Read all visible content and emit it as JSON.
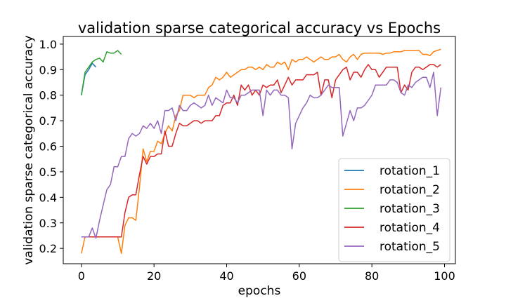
{
  "chart_data": {
    "type": "line",
    "title": "validation sparse categorical accuracy vs Epochs",
    "xlabel": "epochs",
    "ylabel": "validation sparse categorical accuracy",
    "xlim": [
      -5,
      103
    ],
    "ylim": [
      0.14,
      1.03
    ],
    "xticks": [
      0,
      20,
      40,
      60,
      80,
      100
    ],
    "yticks": [
      0.2,
      0.3,
      0.4,
      0.5,
      0.6,
      0.7,
      0.8,
      0.9,
      1.0
    ],
    "ytick_labels": [
      "0.2",
      "0.3",
      "0.4",
      "0.5",
      "0.6",
      "0.7",
      "0.8",
      "0.9",
      "1.0"
    ],
    "xtick_labels": [
      "0",
      "20",
      "40",
      "60",
      "80",
      "100"
    ],
    "grid": false,
    "legend_position": "lower-right",
    "series": [
      {
        "name": "rotation_1",
        "color": "#1f77b4",
        "x": [
          0,
          1,
          2,
          3,
          4
        ],
        "y": [
          0.8,
          0.88,
          0.9,
          0.925,
          0.91
        ]
      },
      {
        "name": "rotation_2",
        "color": "#ff7f0e",
        "x": [
          0,
          1,
          2,
          3,
          4,
          5,
          6,
          7,
          8,
          9,
          10,
          11,
          12,
          13,
          14,
          15,
          16,
          17,
          18,
          19,
          20,
          21,
          22,
          23,
          24,
          25,
          26,
          27,
          28,
          29,
          30,
          31,
          32,
          33,
          34,
          35,
          36,
          37,
          38,
          39,
          40,
          41,
          42,
          43,
          44,
          45,
          46,
          47,
          48,
          49,
          50,
          51,
          52,
          53,
          54,
          55,
          56,
          57,
          58,
          59,
          60,
          61,
          62,
          63,
          64,
          65,
          66,
          67,
          68,
          69,
          70,
          71,
          72,
          73,
          74,
          75,
          76,
          77,
          78,
          79,
          80,
          81,
          82,
          83,
          84,
          85,
          86,
          87,
          88,
          89,
          90,
          91,
          92,
          93,
          94,
          95,
          96,
          97,
          98,
          99
        ],
        "y": [
          0.18,
          0.245,
          0.245,
          0.245,
          0.245,
          0.245,
          0.245,
          0.245,
          0.245,
          0.245,
          0.245,
          0.18,
          0.29,
          0.32,
          0.32,
          0.31,
          0.44,
          0.59,
          0.54,
          0.58,
          0.58,
          0.62,
          0.61,
          0.65,
          0.68,
          0.66,
          0.72,
          0.74,
          0.8,
          0.8,
          0.8,
          0.79,
          0.8,
          0.8,
          0.8,
          0.83,
          0.84,
          0.87,
          0.86,
          0.87,
          0.89,
          0.87,
          0.88,
          0.89,
          0.9,
          0.9,
          0.91,
          0.91,
          0.9,
          0.91,
          0.9,
          0.92,
          0.91,
          0.91,
          0.93,
          0.92,
          0.93,
          0.9,
          0.94,
          0.93,
          0.94,
          0.94,
          0.95,
          0.94,
          0.93,
          0.94,
          0.95,
          0.94,
          0.94,
          0.95,
          0.95,
          0.96,
          0.94,
          0.93,
          0.95,
          0.96,
          0.94,
          0.96,
          0.965,
          0.965,
          0.965,
          0.965,
          0.965,
          0.96,
          0.965,
          0.965,
          0.97,
          0.97,
          0.97,
          0.975,
          0.975,
          0.975,
          0.975,
          0.975,
          0.96,
          0.96,
          0.955,
          0.97,
          0.975,
          0.98
        ]
      },
      {
        "name": "rotation_3",
        "color": "#2ca02c",
        "x": [
          0,
          1,
          2,
          3,
          4,
          5,
          6,
          7,
          8,
          9,
          10,
          11
        ],
        "y": [
          0.8,
          0.89,
          0.91,
          0.93,
          0.94,
          0.945,
          0.93,
          0.97,
          0.965,
          0.965,
          0.975,
          0.96
        ]
      },
      {
        "name": "rotation_4",
        "color": "#d62728",
        "x": [
          0,
          1,
          2,
          3,
          4,
          5,
          6,
          7,
          8,
          9,
          10,
          11,
          12,
          13,
          14,
          15,
          16,
          17,
          18,
          19,
          20,
          21,
          22,
          23,
          24,
          25,
          26,
          27,
          28,
          29,
          30,
          31,
          32,
          33,
          34,
          35,
          36,
          37,
          38,
          39,
          40,
          41,
          42,
          43,
          44,
          45,
          46,
          47,
          48,
          49,
          50,
          51,
          52,
          53,
          54,
          55,
          56,
          57,
          58,
          59,
          60,
          61,
          62,
          63,
          64,
          65,
          66,
          67,
          68,
          69,
          70,
          71,
          72,
          73,
          74,
          75,
          76,
          77,
          78,
          79,
          80,
          81,
          82,
          83,
          84,
          85,
          86,
          87,
          88,
          89,
          90,
          91,
          92,
          93,
          94,
          95,
          96,
          97,
          98,
          99
        ],
        "y": [
          0.245,
          0.245,
          0.245,
          0.245,
          0.245,
          0.245,
          0.245,
          0.245,
          0.245,
          0.245,
          0.245,
          0.245,
          0.34,
          0.4,
          0.41,
          0.41,
          0.49,
          0.56,
          0.53,
          0.56,
          0.56,
          0.57,
          0.57,
          0.66,
          0.6,
          0.6,
          0.65,
          0.69,
          0.68,
          0.68,
          0.69,
          0.7,
          0.7,
          0.69,
          0.7,
          0.7,
          0.7,
          0.72,
          0.72,
          0.76,
          0.77,
          0.77,
          0.8,
          0.76,
          0.84,
          0.82,
          0.84,
          0.8,
          0.82,
          0.8,
          0.84,
          0.83,
          0.84,
          0.84,
          0.86,
          0.81,
          0.84,
          0.87,
          0.84,
          0.86,
          0.86,
          0.86,
          0.88,
          0.88,
          0.88,
          0.89,
          0.8,
          0.86,
          0.86,
          0.79,
          0.86,
          0.88,
          0.9,
          0.91,
          0.86,
          0.89,
          0.89,
          0.87,
          0.9,
          0.92,
          0.9,
          0.9,
          0.87,
          0.89,
          0.91,
          0.91,
          0.91,
          0.91,
          0.81,
          0.84,
          0.82,
          0.89,
          0.91,
          0.91,
          0.9,
          0.91,
          0.92,
          0.92,
          0.91,
          0.92
        ]
      },
      {
        "name": "rotation_5",
        "color": "#9467bd",
        "x": [
          0,
          1,
          2,
          3,
          4,
          5,
          6,
          7,
          8,
          9,
          10,
          11,
          12,
          13,
          14,
          15,
          16,
          17,
          18,
          19,
          20,
          21,
          22,
          23,
          24,
          25,
          26,
          27,
          28,
          29,
          30,
          31,
          32,
          33,
          34,
          35,
          36,
          37,
          38,
          39,
          40,
          41,
          42,
          43,
          44,
          45,
          46,
          47,
          48,
          49,
          50,
          51,
          52,
          53,
          54,
          55,
          56,
          57,
          58,
          59,
          60,
          61,
          62,
          63,
          64,
          65,
          66,
          67,
          68,
          69,
          70,
          71,
          72,
          73,
          74,
          75,
          76,
          77,
          78,
          79,
          80,
          81,
          82,
          83,
          84,
          85,
          86,
          87,
          88,
          89,
          90,
          91,
          92,
          93,
          94,
          95,
          96,
          97,
          98,
          99
        ],
        "y": [
          0.245,
          0.245,
          0.245,
          0.28,
          0.24,
          0.31,
          0.37,
          0.43,
          0.45,
          0.52,
          0.52,
          0.56,
          0.56,
          0.63,
          0.65,
          0.64,
          0.65,
          0.68,
          0.67,
          0.69,
          0.67,
          0.7,
          0.65,
          0.74,
          0.74,
          0.75,
          0.7,
          0.76,
          0.74,
          0.74,
          0.76,
          0.77,
          0.76,
          0.75,
          0.76,
          0.8,
          0.76,
          0.79,
          0.78,
          0.77,
          0.82,
          0.79,
          0.79,
          0.77,
          0.8,
          0.8,
          0.81,
          0.82,
          0.82,
          0.82,
          0.72,
          0.82,
          0.8,
          0.82,
          0.82,
          0.8,
          0.8,
          0.79,
          0.59,
          0.69,
          0.72,
          0.75,
          0.77,
          0.8,
          0.79,
          0.79,
          0.8,
          0.82,
          0.84,
          0.83,
          0.83,
          0.83,
          0.64,
          0.69,
          0.74,
          0.7,
          0.75,
          0.75,
          0.76,
          0.78,
          0.8,
          0.84,
          0.84,
          0.84,
          0.84,
          0.86,
          0.86,
          0.85,
          0.81,
          0.8,
          0.84,
          0.83,
          0.85,
          0.86,
          0.87,
          0.87,
          0.83,
          0.89,
          0.72,
          0.83
        ]
      }
    ]
  }
}
